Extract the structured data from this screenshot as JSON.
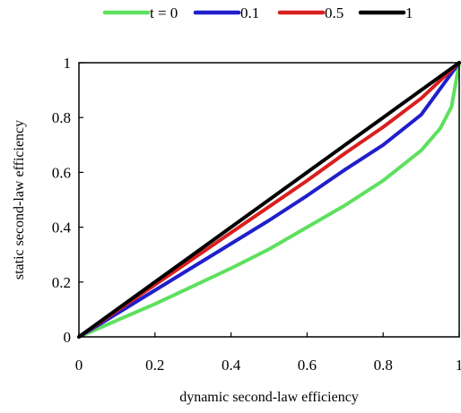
{
  "chart_data": {
    "type": "line",
    "xlabel": "dynamic second-law efficiency",
    "ylabel": "static second-law efficiency",
    "xlim": [
      0,
      1
    ],
    "ylim": [
      0,
      1
    ],
    "xticks": [
      0,
      0.2,
      0.4,
      0.6,
      0.8,
      1
    ],
    "yticks": [
      0,
      0.2,
      0.4,
      0.6,
      0.8,
      1
    ],
    "xtick_labels": [
      "0",
      "0.2",
      "0.4",
      "0.6",
      "0.8",
      "1"
    ],
    "ytick_labels": [
      "0",
      "0.2",
      "0.4",
      "0.6",
      "0.8",
      "1"
    ],
    "grid": false,
    "legend_placement": "top",
    "series": [
      {
        "name": "t = 0",
        "color": "#5ee05e",
        "x": [
          0,
          0.1,
          0.2,
          0.3,
          0.4,
          0.5,
          0.6,
          0.7,
          0.8,
          0.9,
          0.95,
          0.98,
          1.0
        ],
        "y": [
          0,
          0.06,
          0.12,
          0.185,
          0.25,
          0.32,
          0.4,
          0.48,
          0.57,
          0.68,
          0.76,
          0.84,
          1.0
        ]
      },
      {
        "name": "0.1",
        "color": "#1f1fcc",
        "x": [
          0,
          0.1,
          0.2,
          0.3,
          0.4,
          0.5,
          0.6,
          0.7,
          0.8,
          0.9,
          1.0
        ],
        "y": [
          0,
          0.085,
          0.17,
          0.255,
          0.34,
          0.425,
          0.515,
          0.61,
          0.7,
          0.81,
          1.0
        ]
      },
      {
        "name": "0.5",
        "color": "#d91f1f",
        "x": [
          0,
          0.1,
          0.2,
          0.3,
          0.4,
          0.5,
          0.6,
          0.7,
          0.8,
          0.9,
          1.0
        ],
        "y": [
          0,
          0.095,
          0.19,
          0.285,
          0.38,
          0.475,
          0.57,
          0.67,
          0.765,
          0.87,
          1.0
        ]
      },
      {
        "name": "1",
        "color": "#000000",
        "x": [
          0,
          0.1,
          0.2,
          0.3,
          0.4,
          0.5,
          0.6,
          0.7,
          0.8,
          0.9,
          1.0
        ],
        "y": [
          0,
          0.1,
          0.2,
          0.3,
          0.4,
          0.5,
          0.6,
          0.7,
          0.8,
          0.9,
          1.0
        ]
      }
    ]
  }
}
